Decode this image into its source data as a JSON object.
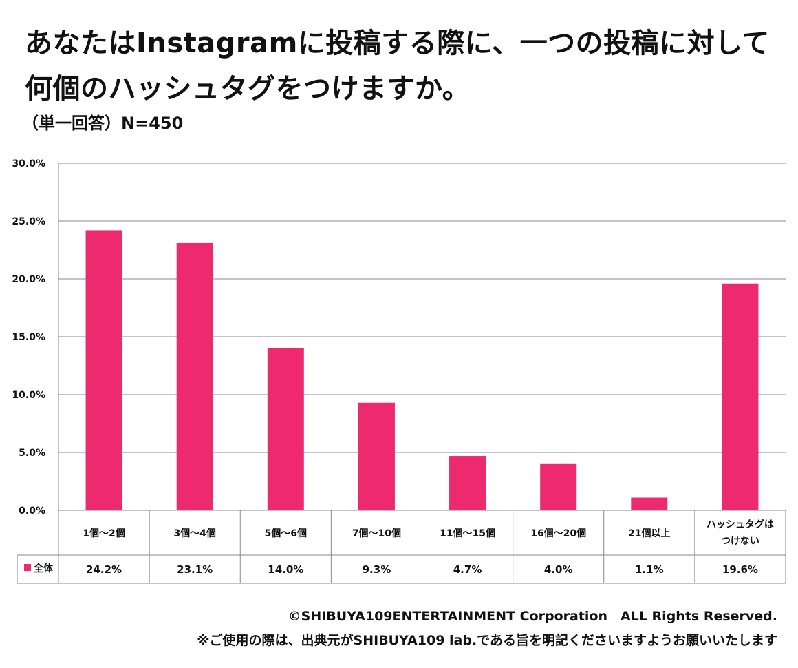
{
  "header": {
    "title": "あなたはInstagramに投稿する際に、一つの投稿に対して何個のハッシュタグをつけますか。",
    "subtitle": "（単一回答）N=450"
  },
  "chart_data": {
    "type": "bar",
    "title": "あなたはInstagramに投稿する際に、一つの投稿に対して何個のハッシュタグをつけますか。",
    "subtitle": "（単一回答）N=450",
    "categories": [
      "1個～2個",
      "3個～4個",
      "5個～6個",
      "7個～10個",
      "11個～15個",
      "16個～20個",
      "21個以上",
      "ハッシュタグはつけない"
    ],
    "series": [
      {
        "name": "全体",
        "values": [
          24.2,
          23.1,
          14.0,
          9.3,
          4.7,
          4.0,
          1.1,
          19.6
        ],
        "labels": [
          "24.2%",
          "23.1%",
          "14.0%",
          "9.3%",
          "4.7%",
          "4.0%",
          "1.1%",
          "19.6%"
        ]
      }
    ],
    "ylim": [
      0,
      30
    ],
    "yticks": [
      "0.0%",
      "5.0%",
      "10.0%",
      "15.0%",
      "20.0%",
      "25.0%",
      "30.0%"
    ],
    "xlabel": "",
    "ylabel": "",
    "grid": true,
    "legend": "data-table-left",
    "color": "#ee2a6f"
  },
  "footer": {
    "copyright": "©SHIBUYA109ENTERTAINMENT Corporation　ALL Rights Reserved.",
    "note": "※ご使用の際は、出典元がSHIBUYA109 lab.である旨を明記くださいますようお願いいたします"
  }
}
